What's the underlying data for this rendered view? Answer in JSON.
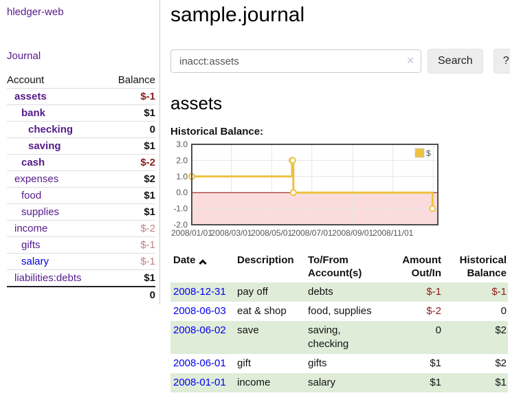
{
  "app": {
    "brand": "hledger-web"
  },
  "sidebar": {
    "nav_journal": "Journal",
    "accounts": {
      "headers": {
        "account": "Account",
        "balance": "Balance"
      },
      "rows": [
        {
          "account": "assets",
          "balance": "$-1"
        },
        {
          "account": "bank",
          "balance": "$1"
        },
        {
          "account": "checking",
          "balance": "0"
        },
        {
          "account": "saving",
          "balance": "$1"
        },
        {
          "account": "cash",
          "balance": "$-2"
        },
        {
          "account": "expenses",
          "balance": "$2"
        },
        {
          "account": "food",
          "balance": "$1"
        },
        {
          "account": "supplies",
          "balance": "$1"
        },
        {
          "account": "income",
          "balance": "$-2"
        },
        {
          "account": "gifts",
          "balance": "$-1"
        },
        {
          "account": "salary",
          "balance": "$-1"
        },
        {
          "account": "liabilities:debts",
          "balance": "$1"
        }
      ],
      "total": "0"
    }
  },
  "header": {
    "title": "sample.journal"
  },
  "search": {
    "value": "inacct:assets",
    "clear_icon": "✕",
    "button_label": "Search",
    "help_label": "?"
  },
  "account_page": {
    "heading": "assets",
    "chart_label": "Historical Balance:"
  },
  "chart_data": {
    "type": "line",
    "title": "Historical Balance",
    "step": true,
    "series": [
      {
        "name": "$",
        "x": [
          "2008-01-01",
          "2008-06-01",
          "2008-06-02",
          "2008-06-03",
          "2008-12-31"
        ],
        "y": [
          1,
          2,
          2,
          0,
          -1
        ]
      }
    ],
    "ylim": [
      -2,
      3
    ],
    "yticks": [
      3.0,
      2.0,
      1.0,
      0.0,
      -1.0,
      -2.0
    ],
    "xlim": [
      "2008-01-01",
      "2009-01-08"
    ],
    "xticks": [
      "2008-01-01",
      "2008-03-01",
      "2008-05-01",
      "2008-07-01",
      "2008-09-01",
      "2008-11-01",
      "2009-01-01"
    ],
    "xtick_labels": [
      "2008/01/01",
      "2008/03/01",
      "2008/05/01",
      "2008/07/01",
      "2008/09/01",
      "2008/11/01",
      ""
    ],
    "grid": true,
    "legend": {
      "label": "$",
      "position": "top-right"
    },
    "colors": {
      "line": "#edc240",
      "marker_fill": "#ffffff",
      "negative_region": "#fbdcdc",
      "zero_line": "#8b0000",
      "grid": "#e6e6e6",
      "border": "#4d4d4d",
      "tick_text": "#545454",
      "legend_box_border": "#cccccc"
    }
  },
  "register": {
    "headers": {
      "date": "Date",
      "description": "Description",
      "accounts": "To/From Account(s)",
      "amount": "Amount Out/In",
      "balance": "Historical Balance"
    },
    "rows": [
      {
        "date": "2008-12-31",
        "description": "pay off",
        "accounts": "debts",
        "amount": "$-1",
        "balance": "$-1"
      },
      {
        "date": "2008-06-03",
        "description": "eat & shop",
        "accounts": "food, supplies",
        "amount": "$-2",
        "balance": "0"
      },
      {
        "date": "2008-06-02",
        "description": "save",
        "accounts": "saving, checking",
        "amount": "0",
        "balance": "$2"
      },
      {
        "date": "2008-06-01",
        "description": "gift",
        "accounts": "gifts",
        "amount": "$1",
        "balance": "$2"
      },
      {
        "date": "2008-01-01",
        "description": "income",
        "accounts": "salary",
        "amount": "$1",
        "balance": "$1"
      }
    ]
  }
}
